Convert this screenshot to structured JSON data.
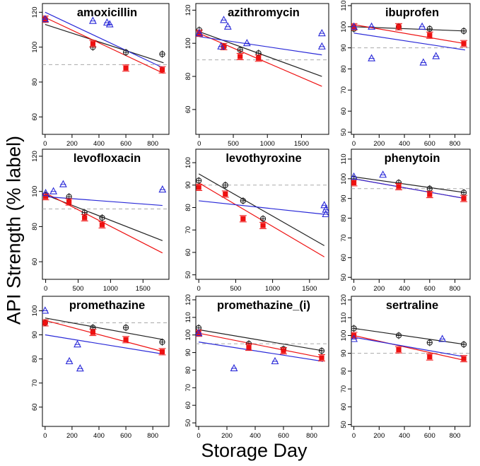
{
  "ylabel": "API Strength (% label)",
  "xlabel": "Storage Day",
  "colors": {
    "black": "#222222",
    "red": "#ee1111",
    "blue": "#2a2ad8",
    "ref": "#aaaaaa"
  },
  "chart_data": [
    {
      "type": "scatter",
      "title": "amoxicillin",
      "xlim": [
        -20,
        920
      ],
      "xticks": [
        0,
        200,
        400,
        600,
        800
      ],
      "ylim": [
        50,
        125
      ],
      "yticks": [
        60,
        80,
        100,
        120
      ],
      "ref_line": 90,
      "series": [
        {
          "name": "black",
          "points": [
            [
              0,
              116
            ],
            [
              355,
              100
            ],
            [
              600,
              97
            ],
            [
              870,
              96
            ]
          ],
          "fit": [
            [
              0,
              113
            ],
            [
              880,
              91
            ]
          ]
        },
        {
          "name": "red",
          "points": [
            [
              0,
              116
            ],
            [
              355,
              102
            ],
            [
              600,
              88
            ],
            [
              870,
              87
            ]
          ],
          "fit": [
            [
              0,
              117
            ],
            [
              880,
              85
            ]
          ]
        },
        {
          "name": "blue",
          "points": [
            [
              0,
              116
            ],
            [
              355,
              115
            ],
            [
              460,
              114
            ],
            [
              480,
              113
            ]
          ],
          "fit": [
            [
              0,
              120
            ],
            [
              880,
              88
            ]
          ]
        }
      ]
    },
    {
      "type": "scatter",
      "title": "azithromycin",
      "xlim": [
        -50,
        1900
      ],
      "xticks": [
        0,
        500,
        1000,
        1500
      ],
      "ylim": [
        45,
        124
      ],
      "yticks": [
        60,
        80,
        100,
        120
      ],
      "ref_line": 90,
      "series": [
        {
          "name": "black",
          "points": [
            [
              0,
              108
            ],
            [
              360,
              98
            ],
            [
              600,
              96
            ],
            [
              870,
              94
            ]
          ],
          "fit": [
            [
              0,
              107
            ],
            [
              1800,
              80
            ]
          ]
        },
        {
          "name": "red",
          "points": [
            [
              0,
              106
            ],
            [
              360,
              98
            ],
            [
              600,
              92
            ],
            [
              870,
              91
            ]
          ],
          "fit": [
            [
              0,
              106
            ],
            [
              1800,
              74
            ]
          ]
        },
        {
          "name": "blue",
          "points": [
            [
              0,
              106
            ],
            [
              320,
              98
            ],
            [
              360,
              114
            ],
            [
              420,
              110
            ],
            [
              700,
              100
            ],
            [
              1800,
              106
            ],
            [
              1800,
              98
            ]
          ],
          "fit": [
            [
              0,
              104
            ],
            [
              1800,
              93
            ]
          ]
        }
      ]
    },
    {
      "type": "scatter",
      "title": "ibuprofen",
      "xlim": [
        -20,
        920
      ],
      "xticks": [
        0,
        200,
        400,
        600,
        800
      ],
      "ylim": [
        49,
        111
      ],
      "yticks": [
        50,
        60,
        70,
        80,
        90,
        100,
        110
      ],
      "ref_line": 90,
      "series": [
        {
          "name": "black",
          "points": [
            [
              0,
              99
            ],
            [
              355,
              100
            ],
            [
              600,
              99
            ],
            [
              870,
              98
            ]
          ],
          "fit": [
            [
              0,
              100
            ],
            [
              880,
              98
            ]
          ]
        },
        {
          "name": "red",
          "points": [
            [
              0,
              100
            ],
            [
              355,
              100
            ],
            [
              600,
              96
            ],
            [
              870,
              92
            ]
          ],
          "fit": [
            [
              0,
              101
            ],
            [
              880,
              92
            ]
          ]
        },
        {
          "name": "blue",
          "points": [
            [
              0,
              100
            ],
            [
              140,
              100
            ],
            [
              140,
              85
            ],
            [
              540,
              100
            ],
            [
              550,
              83
            ],
            [
              650,
              86
            ]
          ],
          "fit": [
            [
              0,
              97
            ],
            [
              880,
              89
            ]
          ]
        }
      ]
    },
    {
      "type": "scatter",
      "title": "levofloxacin",
      "xlim": [
        -50,
        1900
      ],
      "xticks": [
        0,
        500,
        1000,
        1500
      ],
      "ylim": [
        50,
        124
      ],
      "yticks": [
        60,
        80,
        100,
        120
      ],
      "ref_line": 90,
      "series": [
        {
          "name": "black",
          "points": [
            [
              0,
              98
            ],
            [
              360,
              97
            ],
            [
              600,
              88
            ],
            [
              870,
              85
            ]
          ],
          "fit": [
            [
              0,
              98
            ],
            [
              1800,
              72
            ]
          ]
        },
        {
          "name": "red",
          "points": [
            [
              0,
              97
            ],
            [
              360,
              94
            ],
            [
              600,
              85
            ],
            [
              870,
              81
            ]
          ],
          "fit": [
            [
              0,
              99
            ],
            [
              1800,
              65
            ]
          ]
        },
        {
          "name": "blue",
          "points": [
            [
              0,
              99
            ],
            [
              120,
              100
            ],
            [
              270,
              104
            ],
            [
              1800,
              101
            ]
          ],
          "fit": [
            [
              0,
              97
            ],
            [
              1800,
              92
            ]
          ]
        }
      ]
    },
    {
      "type": "scatter",
      "title": "levothyroxine",
      "xlim": [
        -40,
        1760
      ],
      "xticks": [
        0,
        500,
        1000,
        1500
      ],
      "ylim": [
        48,
        106
      ],
      "yticks": [
        50,
        60,
        70,
        80,
        90,
        100
      ],
      "ref_line": 90,
      "series": [
        {
          "name": "black",
          "points": [
            [
              0,
              92
            ],
            [
              360,
              90
            ],
            [
              600,
              83
            ],
            [
              870,
              75
            ]
          ],
          "fit": [
            [
              0,
              95
            ],
            [
              1700,
              63
            ]
          ]
        },
        {
          "name": "red",
          "points": [
            [
              0,
              89
            ],
            [
              360,
              86
            ],
            [
              600,
              75
            ],
            [
              870,
              72
            ]
          ],
          "fit": [
            [
              0,
              91
            ],
            [
              1700,
              58
            ]
          ]
        },
        {
          "name": "blue",
          "points": [
            [
              1700,
              81
            ],
            [
              1720,
              79
            ],
            [
              1720,
              77
            ]
          ],
          "fit": [
            [
              0,
              83
            ],
            [
              1700,
              77
            ]
          ]
        }
      ]
    },
    {
      "type": "scatter",
      "title": "phenytoin",
      "xlim": [
        -20,
        920
      ],
      "xticks": [
        0,
        200,
        400,
        600,
        800
      ],
      "ylim": [
        49,
        115
      ],
      "yticks": [
        50,
        60,
        70,
        80,
        90,
        100,
        110
      ],
      "ref_line": 95,
      "series": [
        {
          "name": "black",
          "points": [
            [
              0,
              100
            ],
            [
              355,
              98
            ],
            [
              600,
              95
            ],
            [
              870,
              93
            ]
          ],
          "fit": [
            [
              0,
              101
            ],
            [
              880,
              93
            ]
          ]
        },
        {
          "name": "red",
          "points": [
            [
              0,
              98
            ],
            [
              355,
              96
            ],
            [
              600,
              92
            ],
            [
              870,
              90
            ]
          ],
          "fit": [
            [
              0,
              100
            ],
            [
              880,
              90
            ]
          ]
        },
        {
          "name": "blue",
          "points": [
            [
              0,
              101
            ],
            [
              230,
              102
            ]
          ],
          "fit": [
            [
              0,
              100
            ],
            [
              880,
              90
            ]
          ]
        }
      ]
    },
    {
      "type": "scatter",
      "title": "promethazine",
      "xlim": [
        -20,
        920
      ],
      "xticks": [
        0,
        200,
        400,
        600,
        800
      ],
      "ylim": [
        52,
        106
      ],
      "yticks": [
        60,
        70,
        80,
        90,
        100
      ],
      "ref_line": 95,
      "series": [
        {
          "name": "black",
          "points": [
            [
              0,
              95
            ],
            [
              355,
              93
            ],
            [
              600,
              93
            ],
            [
              870,
              87
            ]
          ],
          "fit": [
            [
              0,
              97
            ],
            [
              880,
              88
            ]
          ]
        },
        {
          "name": "red",
          "points": [
            [
              0,
              95
            ],
            [
              355,
              91
            ],
            [
              600,
              88
            ],
            [
              870,
              83
            ]
          ],
          "fit": [
            [
              0,
              96
            ],
            [
              880,
              83
            ]
          ]
        },
        {
          "name": "blue",
          "points": [
            [
              0,
              100
            ],
            [
              180,
              79
            ],
            [
              240,
              86
            ],
            [
              260,
              76
            ]
          ],
          "fit": [
            [
              0,
              90
            ],
            [
              880,
              82
            ]
          ]
        }
      ]
    },
    {
      "type": "scatter",
      "title": "promethazine_(i)",
      "xlim": [
        -20,
        920
      ],
      "xticks": [
        0,
        200,
        400,
        600,
        800
      ],
      "ylim": [
        48,
        122
      ],
      "yticks": [
        50,
        60,
        70,
        80,
        90,
        100,
        110,
        120
      ],
      "ref_line": 95,
      "series": [
        {
          "name": "black",
          "points": [
            [
              0,
              104
            ],
            [
              355,
              95
            ],
            [
              600,
              92
            ],
            [
              870,
              91
            ]
          ],
          "fit": [
            [
              0,
              103
            ],
            [
              880,
              91
            ]
          ]
        },
        {
          "name": "red",
          "points": [
            [
              0,
              101
            ],
            [
              355,
              93
            ],
            [
              600,
              91
            ],
            [
              870,
              87
            ]
          ],
          "fit": [
            [
              0,
              101
            ],
            [
              880,
              87
            ]
          ]
        },
        {
          "name": "blue",
          "points": [
            [
              0,
              101
            ],
            [
              250,
              81
            ],
            [
              540,
              85
            ]
          ],
          "fit": [
            [
              0,
              96
            ],
            [
              880,
              85
            ]
          ]
        }
      ]
    },
    {
      "type": "scatter",
      "title": "sertraline",
      "xlim": [
        -20,
        920
      ],
      "xticks": [
        0,
        200,
        400,
        600,
        800
      ],
      "ylim": [
        49,
        122
      ],
      "yticks": [
        50,
        60,
        70,
        80,
        90,
        100,
        110,
        120
      ],
      "ref_line": 90,
      "series": [
        {
          "name": "black",
          "points": [
            [
              0,
              104
            ],
            [
              355,
              100
            ],
            [
              600,
              96
            ],
            [
              870,
              95
            ]
          ],
          "fit": [
            [
              0,
              104
            ],
            [
              880,
              95
            ]
          ]
        },
        {
          "name": "red",
          "points": [
            [
              0,
              100
            ],
            [
              355,
              92
            ],
            [
              600,
              88
            ],
            [
              870,
              87
            ]
          ],
          "fit": [
            [
              0,
              100
            ],
            [
              880,
              86
            ]
          ]
        },
        {
          "name": "blue",
          "points": [
            [
              0,
              98
            ],
            [
              700,
              98
            ]
          ],
          "fit": [
            [
              0,
              99
            ],
            [
              880,
              88
            ]
          ]
        }
      ]
    }
  ]
}
